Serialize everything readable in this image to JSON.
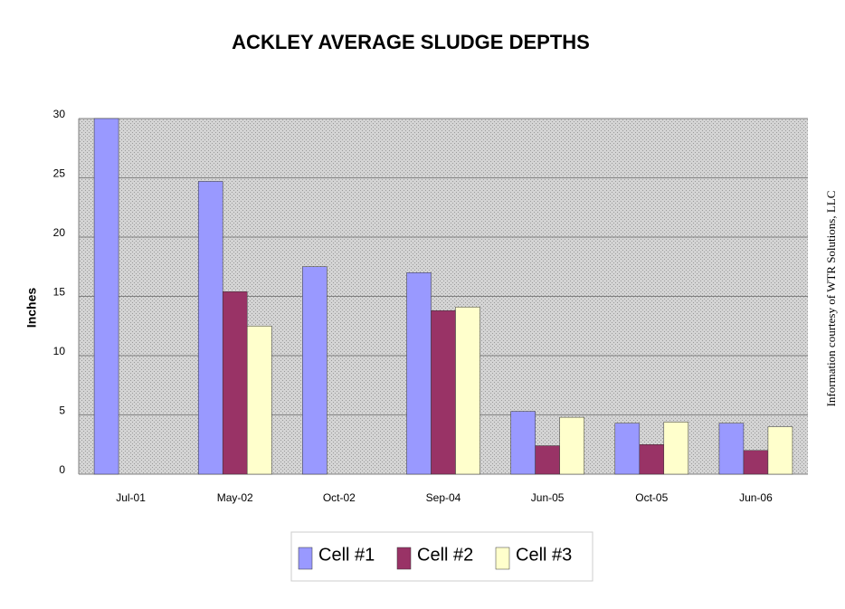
{
  "chart_data": {
    "type": "bar",
    "title": "ACKLEY AVERAGE SLUDGE DEPTHS",
    "y_label": "Inches",
    "annotation": "Information courtesy of WTR Solutions, LLC",
    "categories": [
      "Jul-01",
      "May-02",
      "Oct-02",
      "Sep-04",
      "Jun-05",
      "Oct-05",
      "Jun-06"
    ],
    "series": [
      {
        "name": "Cell #1",
        "color": "#9999ff",
        "values": [
          30,
          24.7,
          17.5,
          17.0,
          5.3,
          4.3,
          4.3
        ]
      },
      {
        "name": "Cell #2",
        "color": "#993366",
        "values": [
          null,
          15.4,
          null,
          13.8,
          2.4,
          2.5,
          2.0
        ]
      },
      {
        "name": "Cell #3",
        "color": "#ffffcc",
        "values": [
          null,
          12.5,
          null,
          14.1,
          4.8,
          4.4,
          4.0
        ]
      }
    ],
    "ylim": [
      0,
      30
    ],
    "yticks": [
      0,
      5,
      10,
      15,
      20,
      25,
      30
    ],
    "grid": true,
    "legend": "bottom"
  }
}
